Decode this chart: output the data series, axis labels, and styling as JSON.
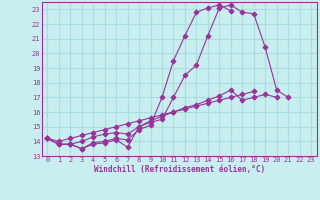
{
  "xlabel": "Windchill (Refroidissement éolien,°C)",
  "background_color": "#c8eef0",
  "grid_color": "#aadddd",
  "line_color": "#993399",
  "xlim": [
    -0.5,
    23.5
  ],
  "ylim": [
    13,
    23.5
  ],
  "yticks": [
    13,
    14,
    15,
    16,
    17,
    18,
    19,
    20,
    21,
    22,
    23
  ],
  "xticks": [
    0,
    1,
    2,
    3,
    4,
    5,
    6,
    7,
    8,
    9,
    10,
    11,
    12,
    13,
    14,
    15,
    16,
    17,
    18,
    19,
    20,
    21,
    22,
    23
  ],
  "series": [
    {
      "x": [
        0,
        1,
        2,
        3,
        4,
        5,
        6,
        7,
        8,
        9,
        10,
        11,
        12,
        13,
        14,
        15,
        16,
        17,
        18,
        19,
        20,
        21
      ],
      "y": [
        14.2,
        13.8,
        13.8,
        13.5,
        13.8,
        13.9,
        14.1,
        13.6,
        15.0,
        15.3,
        15.5,
        17.0,
        18.5,
        19.2,
        21.2,
        23.1,
        23.3,
        22.8,
        22.7,
        20.4,
        17.5,
        17.0
      ]
    },
    {
      "x": [
        0,
        1,
        2,
        3,
        4,
        5,
        6,
        7,
        8,
        9,
        10,
        11,
        12,
        13,
        14,
        15,
        16
      ],
      "y": [
        14.2,
        13.8,
        13.8,
        13.5,
        13.9,
        14.0,
        14.2,
        14.1,
        14.8,
        15.1,
        17.0,
        19.5,
        21.2,
        22.8,
        23.1,
        23.3,
        22.9
      ]
    },
    {
      "x": [
        0,
        1,
        2,
        3,
        4,
        5,
        6,
        7,
        8,
        9,
        10,
        11,
        12,
        13,
        14,
        15,
        16,
        17,
        18,
        19,
        20,
        21,
        22,
        23
      ],
      "y": [
        14.2,
        13.8,
        13.8,
        14.0,
        14.3,
        14.5,
        14.6,
        14.5,
        15.0,
        15.4,
        15.7,
        16.0,
        16.3,
        16.5,
        16.8,
        17.1,
        17.5,
        16.8,
        17.0,
        17.2,
        17.0,
        null,
        null,
        null
      ]
    },
    {
      "x": [
        0,
        1,
        2,
        3,
        4,
        5,
        6,
        7,
        8,
        9,
        10,
        11,
        12,
        13,
        14,
        15,
        16,
        17,
        18,
        19,
        20,
        21,
        22,
        23
      ],
      "y": [
        14.2,
        14.0,
        14.2,
        14.4,
        14.6,
        14.8,
        15.0,
        15.2,
        15.4,
        15.6,
        15.8,
        16.0,
        16.2,
        16.4,
        16.6,
        16.8,
        17.0,
        17.2,
        17.4,
        null,
        null,
        null,
        null,
        null
      ]
    }
  ]
}
